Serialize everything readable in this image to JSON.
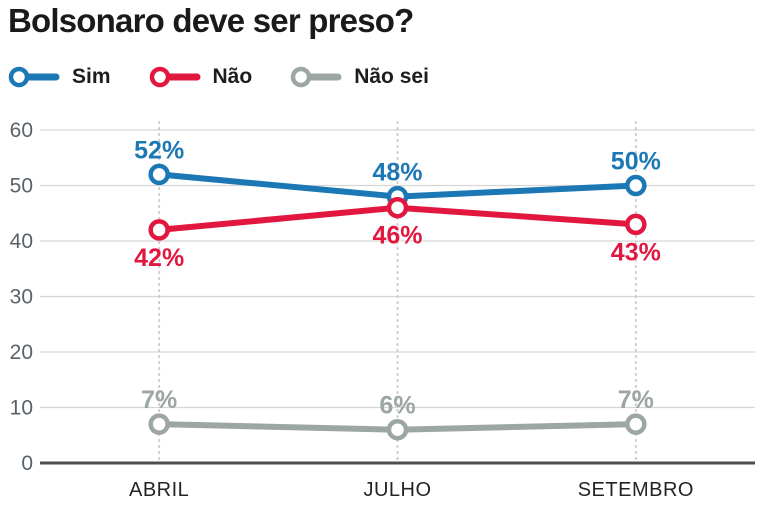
{
  "title": "Bolsonaro deve ser preso?",
  "colors": {
    "sim": "#1b78b5",
    "nao": "#e2173f",
    "nao_sei": "#9ca6a2",
    "grid": "#d6d6d6",
    "zero_axis": "#4d4d4d",
    "dotted_guide": "#c9c9c9",
    "ytick_text": "#5a6269",
    "xtick_text": "#242424"
  },
  "chart_data": {
    "type": "line",
    "categories": [
      "ABRIL",
      "JULHO",
      "SETEMBRO"
    ],
    "series": [
      {
        "name": "Sim",
        "color": "#1b78b5",
        "values": [
          52,
          48,
          50
        ],
        "data_labels": [
          "52%",
          "48%",
          "50%"
        ],
        "label_position": "above"
      },
      {
        "name": "Não",
        "color": "#e2173f",
        "values": [
          42,
          46,
          43
        ],
        "data_labels": [
          "42%",
          "46%",
          "43%"
        ],
        "label_position": "below"
      },
      {
        "name": "Não sei",
        "color": "#9ca6a2",
        "values": [
          7,
          6,
          7
        ],
        "data_labels": [
          "7%",
          "6%",
          "7%"
        ],
        "label_position": "above"
      }
    ],
    "yticks": [
      0,
      10,
      20,
      30,
      40,
      50,
      60
    ],
    "ylim": [
      0,
      60
    ],
    "grid": true,
    "legend_position": "top",
    "title": "Bolsonaro deve ser preso?",
    "xlabel": "",
    "ylabel": ""
  }
}
